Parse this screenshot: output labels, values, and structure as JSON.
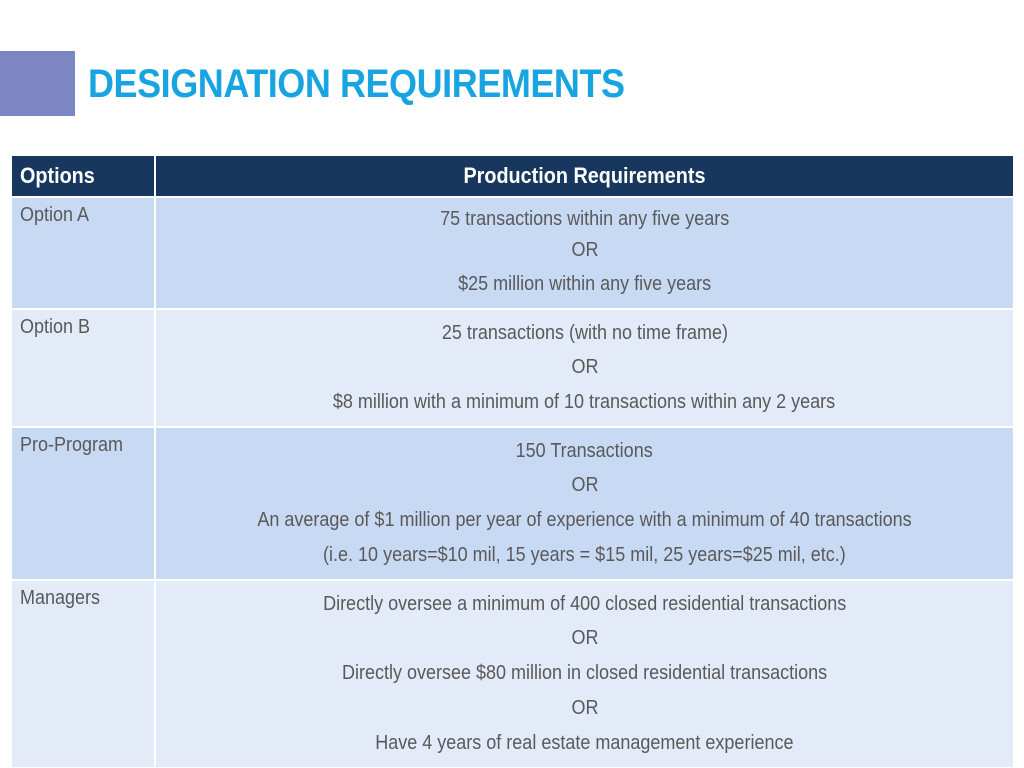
{
  "slide": {
    "title": "DESIGNATION REQUIREMENTS",
    "accent_color": "#7b86c2",
    "title_color": "#18a4e0"
  },
  "table": {
    "header_color": "#17375e",
    "row_dark_color": "#c8daf3",
    "row_light_color": "#e3ebf9",
    "headers": [
      "Options",
      "Production Requirements"
    ],
    "rows": [
      {
        "option": "Option A",
        "lines": [
          "75 transactions within any five years",
          "OR",
          "$25 million within any five years"
        ]
      },
      {
        "option": "Option B",
        "lines": [
          "25 transactions (with no time frame)",
          "OR",
          "$8 million with a minimum of 10 transactions within any 2 years"
        ]
      },
      {
        "option": "Pro-Program",
        "lines": [
          "150 Transactions",
          "OR",
          "An average of $1 million per year of experience with a minimum of 40 transactions",
          "(i.e. 10 years=$10 mil, 15 years = $15 mil, 25 years=$25 mil, etc.)"
        ]
      },
      {
        "option": "Managers",
        "lines": [
          "Directly oversee a minimum of 400 closed residential transactions",
          "OR",
          "Directly oversee $80 million in closed residential transactions",
          "OR",
          "Have 4 years of real estate management experience"
        ]
      }
    ]
  }
}
